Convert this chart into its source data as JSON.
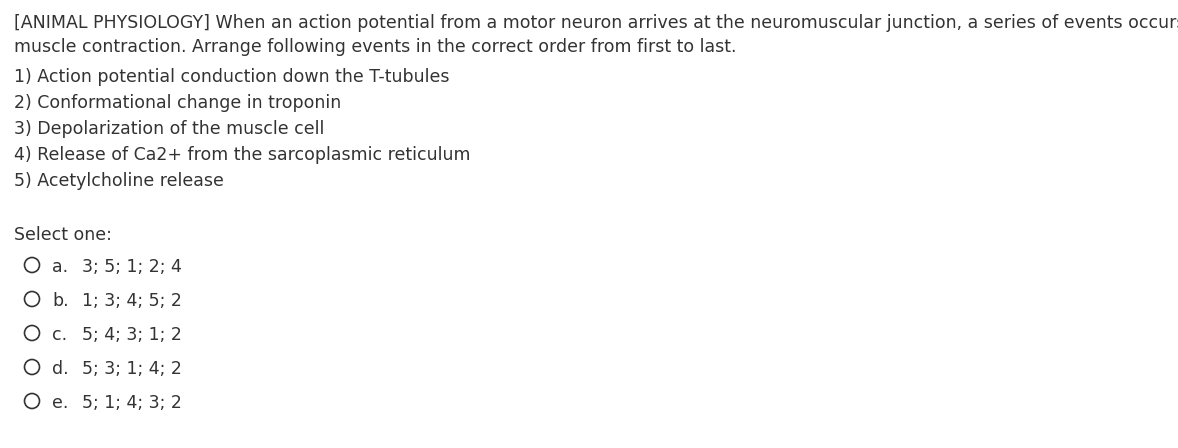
{
  "background_color": "#ffffff",
  "text_color": "#333333",
  "header_line1": "[ANIMAL PHYSIOLOGY] When an action potential from a motor neuron arrives at the neuromuscular junction, a series of events occurs that leads to",
  "header_line2": "muscle contraction. Arrange following events in the correct order from first to last.",
  "items": [
    "1) Action potential conduction down the T-tubules",
    "2) Conformational change in troponin",
    "3) Depolarization of the muscle cell",
    "4) Release of Ca2+ from the sarcoplasmic reticulum",
    "5) Acetylcholine release"
  ],
  "select_label": "Select one:",
  "options": [
    {
      "letter": "a.",
      "text": "3; 5; 1; 2; 4"
    },
    {
      "letter": "b.",
      "text": "1; 3; 4; 5; 2"
    },
    {
      "letter": "c.",
      "text": "5; 4; 3; 1; 2"
    },
    {
      "letter": "d.",
      "text": "5; 3; 1; 4; 2"
    },
    {
      "letter": "e.",
      "text": "5; 1; 4; 3; 2"
    }
  ],
  "font_size": 12.5,
  "figwidth": 11.78,
  "figheight": 4.48,
  "dpi": 100
}
